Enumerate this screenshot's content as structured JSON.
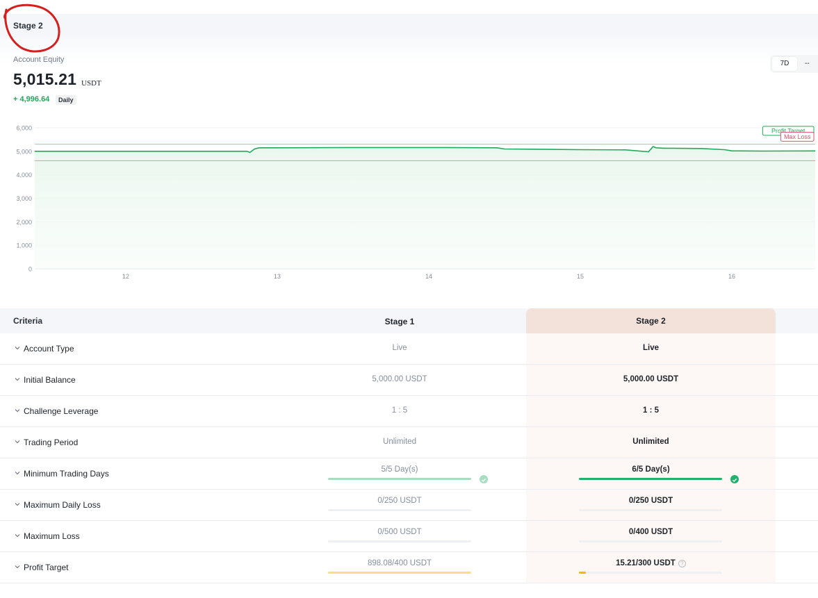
{
  "stage": {
    "title": "Stage 2"
  },
  "equity": {
    "label": "Account Equity",
    "value": "5,015.21",
    "unit": "USDT",
    "change": "+ 4,996.64",
    "period_badge": "Daily"
  },
  "range": {
    "active": "7D",
    "other": "--"
  },
  "chart_data": {
    "type": "line",
    "x_ticks": [
      "12",
      "13",
      "14",
      "15",
      "16"
    ],
    "y_ticks": [
      "6,000",
      "5,000",
      "4,000",
      "3,000",
      "2,000",
      "1,000",
      "0"
    ],
    "ylim": [
      0,
      6000
    ],
    "xlim": [
      11.4,
      16.55
    ],
    "series": [
      {
        "type": "equity",
        "color": "#1faa59",
        "x": [
          11.4,
          12.0,
          12.5,
          12.8,
          12.82,
          12.85,
          12.88,
          13.0,
          13.5,
          14.0,
          14.45,
          14.5,
          14.8,
          15.0,
          15.3,
          15.45,
          15.48,
          15.5,
          15.55,
          15.6,
          15.8,
          15.95,
          16.0,
          16.2,
          16.55
        ],
        "y": [
          5000,
          5000,
          5000,
          5000,
          4950,
          5100,
          5150,
          5150,
          5160,
          5160,
          5150,
          5100,
          5080,
          5070,
          5060,
          4980,
          5200,
          5150,
          5130,
          5130,
          5120,
          5070,
          5020,
          5010,
          5015
        ]
      }
    ],
    "profit_target": {
      "label": "Profit Target",
      "value": 5300,
      "color": "#1faa59"
    },
    "max_loss": {
      "label": "Max Loss",
      "value": 4600,
      "color": "#e0506a"
    },
    "grid": true
  },
  "criteria": {
    "header": {
      "criteria": "Criteria",
      "stage1": "Stage 1",
      "stage2": "Stage 2"
    },
    "rows": [
      {
        "label": "Account Type",
        "stage1": "Live",
        "stage2": "Live"
      },
      {
        "label": "Initial Balance",
        "stage1": "5,000.00 USDT",
        "stage2": "5,000.00 USDT"
      },
      {
        "label": "Challenge Leverage",
        "stage1": "1 : 5",
        "stage2": "1 : 5"
      },
      {
        "label": "Trading Period",
        "stage1": "Unlimited",
        "stage2": "Unlimited"
      },
      {
        "label": "Minimum Trading Days",
        "stage1": "5/5 Day(s)",
        "stage2": "6/5 Day(s)",
        "stage1_progress": 1.0,
        "stage2_progress": 1.0,
        "stage1_color": "#a8ddc1",
        "stage2_color": "#20b26c",
        "completed": true
      },
      {
        "label": "Maximum Daily Loss",
        "stage1": "0/250 USDT",
        "stage2": "0/250 USDT",
        "stage1_progress": 0,
        "stage2_progress": 0
      },
      {
        "label": "Maximum Loss",
        "stage1": "0/500 USDT",
        "stage2": "0/400 USDT",
        "stage1_progress": 0,
        "stage2_progress": 0
      },
      {
        "label": "Profit Target",
        "stage1": "898.08/400 USDT",
        "stage2": "15.21/300 USDT",
        "stage1_progress": 1.0,
        "stage2_progress": 0.05,
        "stage1_color": "#f8dd8a",
        "stage2_color": "#f0b90b",
        "info_icon": "question-circle-icon"
      }
    ]
  }
}
